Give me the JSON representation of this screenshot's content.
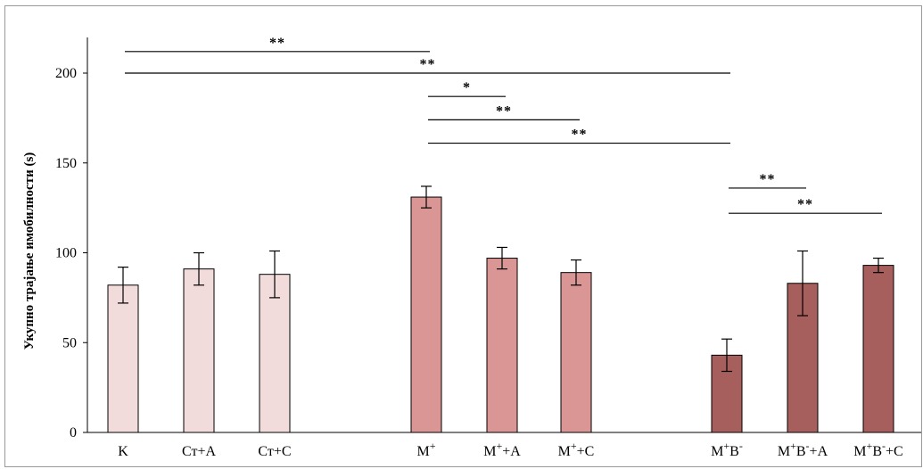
{
  "chart_data": {
    "type": "bar",
    "ylabel": "Укупно трајање имобилности  (s)",
    "xlabel": "",
    "ylim": [
      0,
      220
    ],
    "yticks": [
      0,
      50,
      100,
      150,
      200
    ],
    "grid": false,
    "categories": [
      {
        "label": "K",
        "base": "K",
        "sup": ""
      },
      {
        "label": "Ст+А",
        "base": "Ст+А",
        "sup": ""
      },
      {
        "label": "Ст+С",
        "base": "Ст+С",
        "sup": ""
      },
      {
        "label": "М+",
        "base": "М",
        "sup": "+",
        "tail": ""
      },
      {
        "label": "М+А",
        "base": "М",
        "sup": "+",
        "tail": "+А"
      },
      {
        "label": "М+С",
        "base": "М",
        "sup": "+",
        "tail": "+С"
      },
      {
        "label": "М+В-",
        "base": "М",
        "sup": "+",
        "mid": "В",
        "sup2": "-",
        "tail": ""
      },
      {
        "label": "М+В-+А",
        "base": "М",
        "sup": "+",
        "mid": "В",
        "sup2": "-",
        "tail": "+А"
      },
      {
        "label": "М+В-+С",
        "base": "М",
        "sup": "+",
        "mid": "В",
        "sup2": "-",
        "tail": "+С"
      }
    ],
    "values": [
      82,
      91,
      88,
      131,
      97,
      89,
      43,
      83,
      93
    ],
    "errors": [
      10,
      9,
      13,
      6,
      6,
      7,
      9,
      18,
      4
    ],
    "colors": [
      "#f2dcdb",
      "#f2dcdb",
      "#f2dcdb",
      "#d99694",
      "#d99694",
      "#d99694",
      "#a65f5d",
      "#a65f5d",
      "#a65f5d"
    ],
    "significance": [
      {
        "from": 0,
        "to": 3,
        "level": 212,
        "label": "**"
      },
      {
        "from": 0,
        "to": 6,
        "level": 200,
        "label": "**"
      },
      {
        "from": 3,
        "to": 4,
        "level": 187,
        "label": "*"
      },
      {
        "from": 3,
        "to": 5,
        "level": 174,
        "label": "**"
      },
      {
        "from": 3,
        "to": 6,
        "level": 161,
        "label": "**"
      },
      {
        "from": 6,
        "to": 7,
        "level": 136,
        "label": "**"
      },
      {
        "from": 6,
        "to": 8,
        "level": 122,
        "label": "**"
      }
    ]
  }
}
